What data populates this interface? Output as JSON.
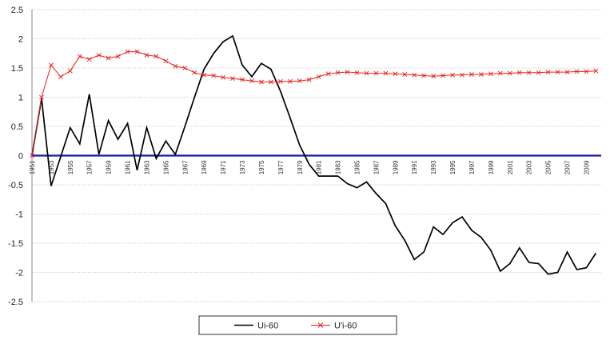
{
  "chart_data": {
    "type": "line",
    "xlim": [
      1951,
      2010
    ],
    "ylim": [
      -2.5,
      2.5
    ],
    "yticks": [
      2.5,
      2,
      1.5,
      1,
      0.5,
      0,
      -0.5,
      -1,
      -1.5,
      -2,
      -2.5
    ],
    "ytick_labels": [
      "2.5",
      "2",
      "1.5",
      "1",
      "0.5",
      "0",
      "-0.5",
      "-1",
      "-1.5",
      "-2",
      "-2.5"
    ],
    "xticks": [
      1951,
      1953,
      1955,
      1957,
      1959,
      1961,
      1963,
      1965,
      1967,
      1969,
      1971,
      1973,
      1975,
      1977,
      1979,
      1981,
      1983,
      1985,
      1987,
      1989,
      1991,
      1993,
      1995,
      1997,
      1999,
      2001,
      2003,
      2005,
      2007,
      2009
    ],
    "xtick_labels": [
      "1951",
      "1953",
      "1955",
      "1957",
      "1959",
      "1961",
      "1963",
      "1965",
      "1967",
      "1969",
      "1971",
      "1973",
      "1975",
      "1977",
      "1979",
      "1981",
      "1983",
      "1985",
      "1987",
      "1989",
      "1991",
      "1993",
      "1995",
      "1997",
      "1999",
      "2001",
      "2003",
      "2005",
      "2007",
      "2009"
    ],
    "grid": true,
    "legend_position": "bottom-center",
    "series": [
      {
        "name": "Ui-60",
        "color": "#000000",
        "marker": "none",
        "x": [
          1951,
          1952,
          1953,
          1954,
          1955,
          1956,
          1957,
          1958,
          1959,
          1960,
          1961,
          1962,
          1963,
          1964,
          1965,
          1966,
          1967,
          1968,
          1969,
          1970,
          1971,
          1972,
          1973,
          1974,
          1975,
          1976,
          1977,
          1978,
          1979,
          1980,
          1981,
          1982,
          1983,
          1984,
          1985,
          1986,
          1987,
          1988,
          1989,
          1990,
          1991,
          1992,
          1993,
          1994,
          1995,
          1996,
          1997,
          1998,
          1999,
          2000,
          2001,
          2002,
          2003,
          2004,
          2005,
          2006,
          2007,
          2008,
          2009,
          2010
        ],
        "values": [
          0,
          0.98,
          -0.52,
          -0.02,
          0.48,
          0.2,
          1.05,
          0.02,
          0.6,
          0.28,
          0.55,
          -0.25,
          0.48,
          -0.05,
          0.25,
          0.02,
          0.5,
          1.0,
          1.48,
          1.75,
          1.95,
          2.05,
          1.55,
          1.35,
          1.58,
          1.48,
          1.1,
          0.65,
          0.18,
          -0.15,
          -0.35,
          -0.35,
          -0.35,
          -0.48,
          -0.55,
          -0.45,
          -0.65,
          -0.82,
          -1.2,
          -1.45,
          -1.78,
          -1.65,
          -1.22,
          -1.35,
          -1.15,
          -1.05,
          -1.28,
          -1.4,
          -1.62,
          -1.98,
          -1.85,
          -1.58,
          -1.83,
          -1.85,
          -2.03,
          -2.0,
          -1.65,
          -1.95,
          -1.92,
          -1.67
        ]
      },
      {
        "name": "U'i-60",
        "color": "#e8201a",
        "marker": "x",
        "x": [
          1951,
          1952,
          1953,
          1954,
          1955,
          1956,
          1957,
          1958,
          1959,
          1960,
          1961,
          1962,
          1963,
          1964,
          1965,
          1966,
          1967,
          1968,
          1969,
          1970,
          1971,
          1972,
          1973,
          1974,
          1975,
          1976,
          1977,
          1978,
          1979,
          1980,
          1981,
          1982,
          1983,
          1984,
          1985,
          1986,
          1987,
          1988,
          1989,
          1990,
          1991,
          1992,
          1993,
          1994,
          1995,
          1996,
          1997,
          1998,
          1999,
          2000,
          2001,
          2002,
          2003,
          2004,
          2005,
          2006,
          2007,
          2008,
          2009,
          2010
        ],
        "values": [
          0,
          1.0,
          1.55,
          1.35,
          1.45,
          1.7,
          1.65,
          1.72,
          1.67,
          1.7,
          1.78,
          1.78,
          1.72,
          1.7,
          1.62,
          1.53,
          1.5,
          1.42,
          1.38,
          1.37,
          1.34,
          1.32,
          1.3,
          1.28,
          1.26,
          1.26,
          1.27,
          1.27,
          1.28,
          1.3,
          1.35,
          1.4,
          1.42,
          1.43,
          1.42,
          1.41,
          1.41,
          1.41,
          1.4,
          1.39,
          1.38,
          1.37,
          1.36,
          1.37,
          1.38,
          1.38,
          1.39,
          1.39,
          1.4,
          1.41,
          1.41,
          1.42,
          1.42,
          1.42,
          1.43,
          1.43,
          1.43,
          1.44,
          1.44,
          1.45
        ]
      }
    ]
  }
}
